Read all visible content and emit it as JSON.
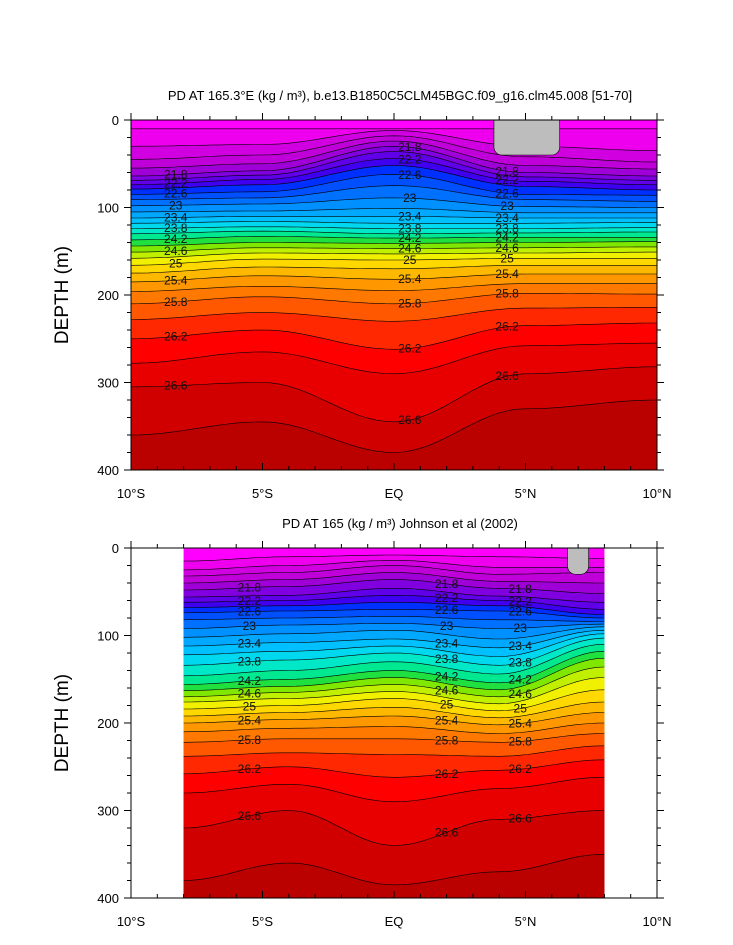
{
  "chart_data": [
    {
      "type": "contour",
      "title": "PD AT 165.3°E (kg / m³), b.e13.B1850C5CLM45BGC.f09_g16.clm45.008 [51-70]",
      "ylabel": "DEPTH (m)",
      "xlabel": "",
      "xlim": [
        -10,
        10
      ],
      "ylim": [
        0,
        400
      ],
      "y_reversed": true,
      "x_tick_values": [
        -10,
        -5,
        0,
        5,
        10
      ],
      "x_tick_labels": [
        "10°S",
        "5°S",
        "EQ",
        "5°N",
        "10°N"
      ],
      "y_tick_values": [
        0,
        100,
        200,
        300,
        400
      ],
      "y_tick_labels": [
        "0",
        "100",
        "200",
        "300",
        "400"
      ],
      "data_x_extent": [
        -10,
        10
      ],
      "contour_levels": [
        21.0,
        21.2,
        21.4,
        21.6,
        21.8,
        22.0,
        22.2,
        22.4,
        22.6,
        22.8,
        23.0,
        23.2,
        23.4,
        23.6,
        23.8,
        24.0,
        24.2,
        24.4,
        24.6,
        24.8,
        25.0,
        25.2,
        25.4,
        25.6,
        25.8,
        26.0,
        26.2,
        26.4,
        26.6,
        26.8
      ],
      "contour_x": [
        -10,
        -5,
        0,
        5,
        10
      ],
      "contour_depths": [
        [
          10,
          10,
          10,
          10,
          10
        ],
        [
          30,
          28,
          12,
          30,
          35
        ],
        [
          45,
          40,
          18,
          42,
          48
        ],
        [
          55,
          50,
          24,
          52,
          56
        ],
        [
          64,
          58,
          30,
          60,
          64
        ],
        [
          69,
          63,
          36,
          65,
          69
        ],
        [
          74,
          68,
          44,
          70,
          74
        ],
        [
          79,
          74,
          52,
          76,
          80
        ],
        [
          85,
          82,
          62,
          85,
          86
        ],
        [
          91,
          89,
          75,
          91,
          93
        ],
        [
          98,
          96,
          89,
          99,
          100
        ],
        [
          105,
          104,
          101,
          106,
          106
        ],
        [
          112,
          110,
          110,
          112,
          112
        ],
        [
          118,
          116,
          118,
          118,
          117
        ],
        [
          124,
          122,
          124,
          124,
          123
        ],
        [
          130,
          127,
          130,
          129,
          128
        ],
        [
          137,
          133,
          135,
          134,
          134
        ],
        [
          144,
          140,
          141,
          140,
          139
        ],
        [
          151,
          146,
          147,
          146,
          145
        ],
        [
          158,
          152,
          153,
          152,
          151
        ],
        [
          166,
          159,
          160,
          158,
          158
        ],
        [
          175,
          168,
          170,
          166,
          166
        ],
        [
          185,
          178,
          182,
          176,
          176
        ],
        [
          196,
          190,
          195,
          187,
          187
        ],
        [
          210,
          202,
          210,
          198,
          199
        ],
        [
          228,
          220,
          230,
          215,
          214
        ],
        [
          250,
          240,
          262,
          235,
          232
        ],
        [
          278,
          265,
          290,
          258,
          255
        ],
        [
          305,
          300,
          345,
          290,
          282
        ],
        [
          360,
          345,
          380,
          330,
          320
        ]
      ],
      "labeled_levels": [
        "21.8",
        "22.2",
        "22.6",
        "23",
        "23.4",
        "23.8",
        "24.2",
        "24.6",
        "25",
        "25.4",
        "25.8",
        "26.2",
        "26.6"
      ],
      "label_x_positions": [
        -8.3,
        0.6,
        4.3
      ],
      "colors": [
        "#ff00ff",
        "#ee00ee",
        "#d000e0",
        "#c000d8",
        "#a000d8",
        "#8000e0",
        "#6000e8",
        "#4000f0",
        "#0030ff",
        "#0050ff",
        "#0070ff",
        "#0090ff",
        "#00a8ff",
        "#00c0ff",
        "#00d8f0",
        "#00e8c8",
        "#00e890",
        "#20e040",
        "#80e800",
        "#c0f000",
        "#f0f000",
        "#ffd800",
        "#ffb800",
        "#ff9800",
        "#ff7800",
        "#ff5800",
        "#ff2800",
        "#ff0000",
        "#e80000",
        "#d00000",
        "#bb0000"
      ],
      "missing_patches": [
        {
          "x": [
            3.8,
            6.3
          ],
          "y": [
            0,
            40
          ]
        }
      ]
    },
    {
      "type": "contour",
      "title": "PD AT 165 (kg / m³) Johnson et al (2002)",
      "ylabel": "DEPTH (m)",
      "xlabel": "",
      "xlim": [
        -10,
        10
      ],
      "ylim": [
        0,
        400
      ],
      "y_reversed": true,
      "x_tick_values": [
        -10,
        -5,
        0,
        5,
        10
      ],
      "x_tick_labels": [
        "10°S",
        "5°S",
        "EQ",
        "5°N",
        "10°N"
      ],
      "y_tick_values": [
        0,
        100,
        200,
        300,
        400
      ],
      "y_tick_labels": [
        "0",
        "100",
        "200",
        "300",
        "400"
      ],
      "data_x_extent": [
        -8,
        8
      ],
      "contour_levels": [
        21.0,
        21.2,
        21.4,
        21.6,
        21.8,
        22.0,
        22.2,
        22.4,
        22.6,
        22.8,
        23.0,
        23.2,
        23.4,
        23.6,
        23.8,
        24.0,
        24.2,
        24.4,
        24.6,
        24.8,
        25.0,
        25.2,
        25.4,
        25.6,
        25.8,
        26.0,
        26.2,
        26.4,
        26.6,
        26.8
      ],
      "contour_x": [
        -8,
        -4,
        0,
        4,
        8
      ],
      "contour_depths": [
        [
          15,
          10,
          8,
          10,
          12
        ],
        [
          25,
          20,
          14,
          22,
          22
        ],
        [
          32,
          28,
          20,
          30,
          28
        ],
        [
          40,
          36,
          28,
          38,
          40
        ],
        [
          48,
          44,
          36,
          46,
          52
        ],
        [
          56,
          54,
          46,
          55,
          62
        ],
        [
          62,
          60,
          54,
          60,
          70
        ],
        [
          68,
          66,
          62,
          66,
          76
        ],
        [
          74,
          72,
          70,
          72,
          80
        ],
        [
          82,
          80,
          78,
          82,
          84
        ],
        [
          92,
          88,
          86,
          92,
          87
        ],
        [
          102,
          98,
          94,
          104,
          90
        ],
        [
          112,
          108,
          104,
          114,
          94
        ],
        [
          122,
          118,
          112,
          124,
          98
        ],
        [
          134,
          128,
          120,
          134,
          103
        ],
        [
          146,
          140,
          130,
          144,
          110
        ],
        [
          156,
          150,
          140,
          154,
          118
        ],
        [
          163,
          158,
          148,
          162,
          126
        ],
        [
          170,
          165,
          156,
          170,
          136
        ],
        [
          176,
          172,
          164,
          178,
          148
        ],
        [
          184,
          180,
          172,
          186,
          162
        ],
        [
          192,
          188,
          182,
          194,
          176
        ],
        [
          200,
          196,
          192,
          202,
          188
        ],
        [
          210,
          206,
          204,
          212,
          200
        ],
        [
          222,
          218,
          218,
          222,
          212
        ],
        [
          238,
          234,
          236,
          238,
          226
        ],
        [
          258,
          250,
          262,
          254,
          242
        ],
        [
          280,
          270,
          290,
          275,
          262
        ],
        [
          320,
          300,
          340,
          310,
          300
        ],
        [
          380,
          360,
          385,
          370,
          350
        ]
      ],
      "labeled_levels": [
        "21.8",
        "22.2",
        "22.6",
        "23",
        "23.4",
        "23.8",
        "24.2",
        "24.6",
        "25",
        "25.4",
        "25.8",
        "26.2",
        "26.6"
      ],
      "label_x_positions": [
        -5.5,
        2.0,
        4.8
      ],
      "colors": [
        "#ff00ff",
        "#ee00ee",
        "#d000e0",
        "#c000d8",
        "#a000d8",
        "#8000e0",
        "#6000e8",
        "#4000f0",
        "#0030ff",
        "#0050ff",
        "#0070ff",
        "#0090ff",
        "#00a8ff",
        "#00c0ff",
        "#00d8f0",
        "#00e8c8",
        "#00e890",
        "#20e040",
        "#80e800",
        "#c0f000",
        "#f0f000",
        "#ffd800",
        "#ffb800",
        "#ff9800",
        "#ff7800",
        "#ff5800",
        "#ff2800",
        "#ff0000",
        "#e80000",
        "#d00000",
        "#bb0000"
      ],
      "missing_patches": [
        {
          "x": [
            6.6,
            7.4
          ],
          "y": [
            0,
            30
          ]
        }
      ]
    }
  ]
}
